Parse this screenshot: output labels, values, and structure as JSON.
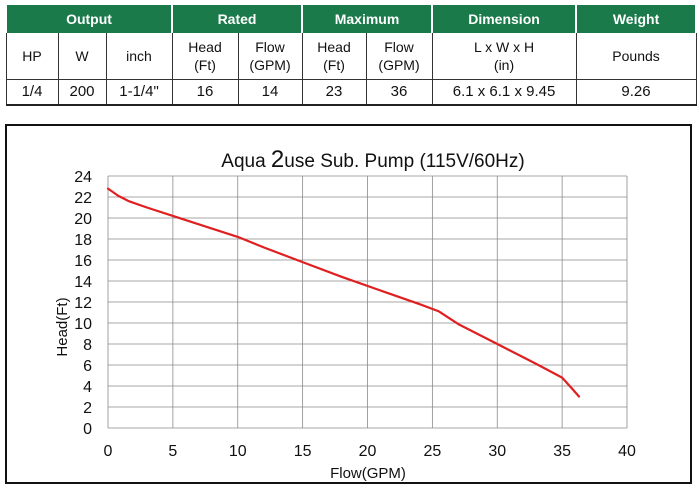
{
  "table": {
    "groups": [
      {
        "label": "Output",
        "span": 3
      },
      {
        "label": "Rated",
        "span": 2
      },
      {
        "label": "Maximum",
        "span": 2
      },
      {
        "label": "Dimension",
        "span": 1
      },
      {
        "label": "Weight",
        "span": 1
      }
    ],
    "subheaders": [
      {
        "line1": "HP",
        "line2": ""
      },
      {
        "line1": "W",
        "line2": ""
      },
      {
        "line1": "inch",
        "line2": ""
      },
      {
        "line1": "Head",
        "line2": "(Ft)"
      },
      {
        "line1": "Flow",
        "line2": "(GPM)"
      },
      {
        "line1": "Head",
        "line2": "(Ft)"
      },
      {
        "line1": "Flow",
        "line2": "(GPM)"
      },
      {
        "line1": "L x W x H",
        "line2": "(in)"
      },
      {
        "line1": "Pounds",
        "line2": ""
      }
    ],
    "row": [
      "1/4",
      "200",
      "1-1/4\"",
      "16",
      "14",
      "23",
      "36",
      "6.1 x 6.1 x 9.45",
      "9.26"
    ]
  },
  "chart_data": {
    "type": "line",
    "title_prefix": "Aqua ",
    "title_emph": "2",
    "title_suffix": "use Sub. Pump (115V/60Hz)",
    "xlabel": "Flow(GPM)",
    "ylabel": "Head(Ft)",
    "xlim": [
      0,
      40
    ],
    "ylim": [
      0,
      24
    ],
    "xticks": [
      0,
      5,
      10,
      15,
      20,
      25,
      30,
      35,
      40
    ],
    "yticks": [
      0,
      2,
      4,
      6,
      8,
      10,
      12,
      14,
      16,
      18,
      20,
      22,
      24
    ],
    "grid": true,
    "line_color": "#e02020",
    "series": [
      {
        "x": [
          0,
          0.8,
          1.6,
          3,
          5,
          7.5,
          10,
          12,
          15,
          18,
          21,
          24,
          25.5,
          27,
          30,
          33,
          35,
          35.8,
          36.3
        ],
        "y": [
          22.8,
          22.1,
          21.6,
          21.0,
          20.2,
          19.2,
          18.2,
          17.2,
          15.8,
          14.4,
          13.1,
          11.8,
          11.1,
          9.9,
          8.0,
          6.1,
          4.8,
          3.7,
          3.0
        ]
      }
    ]
  }
}
